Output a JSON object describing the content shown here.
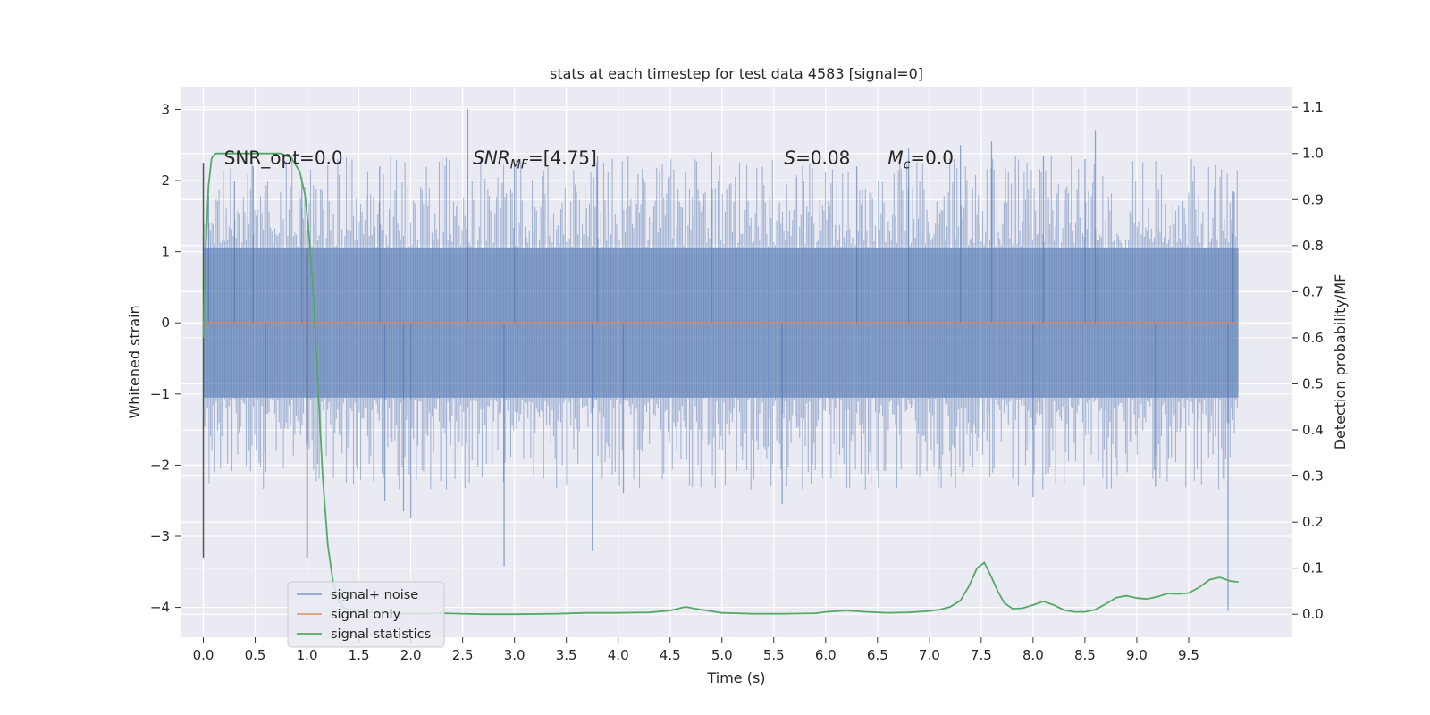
{
  "chart_data": {
    "type": "line",
    "title": "stats at each timestep for test data 4583 [signal=0]",
    "xlabel": "Time (s)",
    "ylabel": "Whitened strain",
    "y2label": "Detection probability/MF",
    "xlim": [
      -0.22,
      10.5
    ],
    "ylim": [
      -4.42,
      3.32
    ],
    "y2lim": [
      -0.05,
      1.145
    ],
    "xticks": [
      0.0,
      0.5,
      1.0,
      1.5,
      2.0,
      2.5,
      3.0,
      3.5,
      4.0,
      4.5,
      5.0,
      5.5,
      6.0,
      6.5,
      7.0,
      7.5,
      8.0,
      8.5,
      9.0,
      9.5
    ],
    "xtick_labels": [
      "0.0",
      "0.5",
      "1.0",
      "1.5",
      "2.0",
      "2.5",
      "3.0",
      "3.5",
      "4.0",
      "4.5",
      "5.0",
      "5.5",
      "6.0",
      "6.5",
      "7.0",
      "7.5",
      "8.0",
      "8.5",
      "9.0",
      "9.5"
    ],
    "yticks": [
      -4,
      -3,
      -2,
      -1,
      0,
      1,
      2,
      3
    ],
    "ytick_labels": [
      "−4",
      "−3",
      "−2",
      "−1",
      "0",
      "1",
      "2",
      "3"
    ],
    "y2ticks": [
      0.0,
      0.1,
      0.2,
      0.3,
      0.4,
      0.5,
      0.6,
      0.7,
      0.8,
      0.9,
      1.0,
      1.1
    ],
    "y2tick_labels": [
      "0.0",
      "0.1",
      "0.2",
      "0.3",
      "0.4",
      "0.5",
      "0.6",
      "0.7",
      "0.8",
      "0.9",
      "1.0",
      "1.1"
    ],
    "grid": true,
    "legend_position": "lower-left",
    "colors": {
      "background": "#eaeaf2",
      "grid": "#ffffff",
      "noise": "#4c72b0",
      "signal": "#dd8452",
      "stats": "#55a868",
      "marker": "#555555"
    },
    "annotations": [
      {
        "name": "snr-opt",
        "text": "SNR_opt=0.0",
        "x": 0.2,
        "y": 2.23
      },
      {
        "name": "snr-mf",
        "text": "SNR",
        "sub": "MF",
        "rest": "=[4.75]",
        "italic": true,
        "x": 2.6,
        "y": 2.23
      },
      {
        "name": "s-value",
        "text": "S",
        "rest": "=0.08",
        "italic": true,
        "x": 5.6,
        "y": 2.23
      },
      {
        "name": "mc-value",
        "text": "M",
        "sub": "c",
        "rest": "=0.0",
        "italic": true,
        "x": 6.6,
        "y": 2.23
      }
    ],
    "vertical_markers": [
      {
        "x": 0.0,
        "y_top": 2.25,
        "y_bottom": -3.3
      },
      {
        "x": 1.0,
        "y_top": 1.3,
        "y_bottom": -3.3
      }
    ],
    "series": [
      {
        "name": "signal+ noise",
        "kind": "noise",
        "x_range": [
          0.0,
          9.98
        ],
        "band_typical": 1.05,
        "band_extreme": 2.35,
        "spikes": [
          {
            "x": 0.05,
            "y": 1.8
          },
          {
            "x": 0.3,
            "y": 2.0
          },
          {
            "x": 0.48,
            "y": 2.2
          },
          {
            "x": 0.6,
            "y": -2.1
          },
          {
            "x": 0.95,
            "y": 2.05
          },
          {
            "x": 1.7,
            "y": 2.2
          },
          {
            "x": 1.75,
            "y": -2.5
          },
          {
            "x": 1.93,
            "y": -2.65
          },
          {
            "x": 2.0,
            "y": -2.75
          },
          {
            "x": 2.55,
            "y": 3.0
          },
          {
            "x": 2.9,
            "y": -3.42
          },
          {
            "x": 3.0,
            "y": 2.25
          },
          {
            "x": 3.75,
            "y": -3.2
          },
          {
            "x": 3.8,
            "y": 2.35
          },
          {
            "x": 4.05,
            "y": -2.4
          },
          {
            "x": 4.9,
            "y": 2.4
          },
          {
            "x": 5.58,
            "y": -2.55
          },
          {
            "x": 6.3,
            "y": 2.2
          },
          {
            "x": 6.8,
            "y": 2.45
          },
          {
            "x": 7.3,
            "y": 2.5
          },
          {
            "x": 7.6,
            "y": 2.55
          },
          {
            "x": 8.0,
            "y": -2.45
          },
          {
            "x": 8.1,
            "y": 2.35
          },
          {
            "x": 8.5,
            "y": 2.3
          },
          {
            "x": 8.6,
            "y": 2.7
          },
          {
            "x": 9.18,
            "y": -2.3
          },
          {
            "x": 9.88,
            "y": -4.05
          },
          {
            "x": 9.93,
            "y": 1.85
          }
        ]
      },
      {
        "name": "signal only",
        "kind": "line",
        "x": [
          0.0,
          9.98
        ],
        "y": [
          0.0,
          0.0
        ]
      },
      {
        "name": "signal statistics",
        "kind": "line",
        "axis": "right",
        "x": [
          0.0,
          0.02,
          0.05,
          0.08,
          0.12,
          0.2,
          0.3,
          0.45,
          0.6,
          0.75,
          0.85,
          0.93,
          0.98,
          1.02,
          1.06,
          1.1,
          1.15,
          1.2,
          1.25,
          1.3,
          1.35,
          1.4,
          1.5,
          1.7,
          2.0,
          2.3,
          2.7,
          3.0,
          3.4,
          3.7,
          4.0,
          4.3,
          4.5,
          4.65,
          4.8,
          5.0,
          5.3,
          5.6,
          5.9,
          6.0,
          6.2,
          6.4,
          6.6,
          6.8,
          7.0,
          7.1,
          7.2,
          7.3,
          7.38,
          7.46,
          7.53,
          7.6,
          7.66,
          7.72,
          7.8,
          7.9,
          8.0,
          8.1,
          8.2,
          8.3,
          8.4,
          8.5,
          8.6,
          8.7,
          8.8,
          8.9,
          9.0,
          9.1,
          9.2,
          9.3,
          9.4,
          9.5,
          9.6,
          9.7,
          9.8,
          9.9,
          9.98
        ],
        "y": [
          0.6,
          0.78,
          0.93,
          0.99,
          1.0,
          1.0,
          1.0,
          1.0,
          1.0,
          1.0,
          0.99,
          0.96,
          0.91,
          0.82,
          0.7,
          0.52,
          0.3,
          0.15,
          0.07,
          0.03,
          0.015,
          0.01,
          0.006,
          0.003,
          0.001,
          0.002,
          0.0,
          0.0,
          0.001,
          0.003,
          0.003,
          0.004,
          0.008,
          0.016,
          0.01,
          0.003,
          0.001,
          0.001,
          0.002,
          0.005,
          0.008,
          0.005,
          0.003,
          0.004,
          0.007,
          0.01,
          0.016,
          0.03,
          0.06,
          0.1,
          0.112,
          0.08,
          0.05,
          0.025,
          0.012,
          0.013,
          0.02,
          0.028,
          0.02,
          0.009,
          0.005,
          0.005,
          0.01,
          0.022,
          0.036,
          0.04,
          0.035,
          0.033,
          0.038,
          0.045,
          0.044,
          0.046,
          0.058,
          0.075,
          0.08,
          0.072,
          0.07
        ]
      }
    ]
  }
}
